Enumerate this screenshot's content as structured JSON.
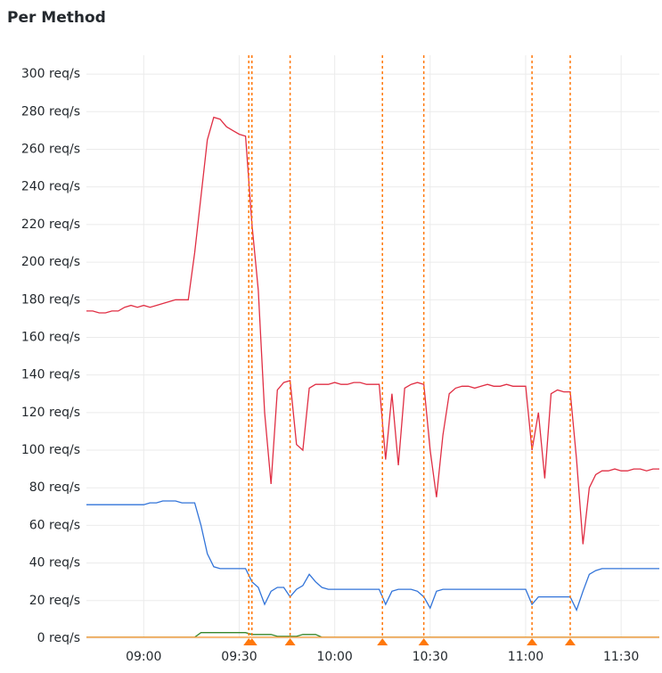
{
  "chart_data": {
    "type": "line",
    "title": "Per Method",
    "x": [
      "08:42",
      "08:44",
      "08:46",
      "08:48",
      "08:50",
      "08:52",
      "08:54",
      "08:56",
      "08:58",
      "09:00",
      "09:02",
      "09:04",
      "09:06",
      "09:08",
      "09:10",
      "09:12",
      "09:14",
      "09:16",
      "09:18",
      "09:20",
      "09:22",
      "09:24",
      "09:26",
      "09:28",
      "09:30",
      "09:32",
      "09:34",
      "09:36",
      "09:38",
      "09:40",
      "09:42",
      "09:44",
      "09:46",
      "09:48",
      "09:50",
      "09:52",
      "09:54",
      "09:56",
      "09:58",
      "10:00",
      "10:02",
      "10:04",
      "10:06",
      "10:08",
      "10:10",
      "10:12",
      "10:14",
      "10:16",
      "10:18",
      "10:20",
      "10:22",
      "10:24",
      "10:26",
      "10:28",
      "10:30",
      "10:32",
      "10:34",
      "10:36",
      "10:38",
      "10:40",
      "10:42",
      "10:44",
      "10:46",
      "10:48",
      "10:50",
      "10:52",
      "10:54",
      "10:56",
      "10:58",
      "11:00",
      "11:02",
      "11:04",
      "11:06",
      "11:08",
      "11:10",
      "11:12",
      "11:14",
      "11:16",
      "11:18",
      "11:20",
      "11:22",
      "11:24",
      "11:26",
      "11:28",
      "11:30",
      "11:32",
      "11:34",
      "11:36",
      "11:38",
      "11:40",
      "11:42"
    ],
    "series": [
      {
        "color": "#e02f44",
        "values": [
          174,
          174,
          173,
          173,
          174,
          174,
          176,
          177,
          176,
          177,
          176,
          177,
          178,
          179,
          180,
          180,
          180,
          205,
          235,
          265,
          277,
          276,
          272,
          270,
          268,
          267,
          220,
          185,
          120,
          82,
          132,
          136,
          137,
          103,
          100,
          133,
          135,
          135,
          135,
          136,
          135,
          135,
          136,
          136,
          135,
          135,
          135,
          95,
          130,
          92,
          133,
          135,
          136,
          135,
          100,
          75,
          108,
          130,
          133,
          134,
          134,
          133,
          134,
          135,
          134,
          134,
          135,
          134,
          134,
          134,
          100,
          120,
          85,
          130,
          132,
          131,
          131,
          95,
          50,
          80,
          87,
          89,
          89,
          90,
          89,
          89,
          90,
          90,
          89,
          90,
          90
        ]
      },
      {
        "color": "#3274d9",
        "values": [
          71,
          71,
          71,
          71,
          71,
          71,
          71,
          71,
          71,
          71,
          72,
          72,
          73,
          73,
          73,
          72,
          72,
          72,
          60,
          45,
          38,
          37,
          37,
          37,
          37,
          37,
          30,
          27,
          18,
          25,
          27,
          27,
          22,
          26,
          28,
          34,
          30,
          27,
          26,
          26,
          26,
          26,
          26,
          26,
          26,
          26,
          26,
          18,
          25,
          26,
          26,
          26,
          25,
          22,
          16,
          25,
          26,
          26,
          26,
          26,
          26,
          26,
          26,
          26,
          26,
          26,
          26,
          26,
          26,
          26,
          18,
          22,
          22,
          22,
          22,
          22,
          22,
          15,
          25,
          34,
          36,
          37,
          37,
          37,
          37,
          37,
          37,
          37,
          37,
          37,
          37
        ]
      },
      {
        "color": "#37872d",
        "values": [
          0.5,
          0.5,
          0.5,
          0.5,
          0.5,
          0.5,
          0.5,
          0.5,
          0.5,
          0.5,
          0.5,
          0.5,
          0.5,
          0.5,
          0.5,
          0.5,
          0.5,
          0.5,
          3,
          3,
          3,
          3,
          3,
          3,
          3,
          3,
          2,
          2,
          2,
          2,
          1,
          1,
          1,
          1,
          2,
          2,
          2,
          0.5,
          0.5,
          0.5,
          0.5,
          0.5,
          0.5,
          0.5,
          0.5,
          0.5,
          0.5,
          0.5,
          0.5,
          0.5,
          0.5,
          0.5,
          0.5,
          0.5,
          0.5,
          0.5,
          0.5,
          0.5,
          0.5,
          0.5,
          0.5,
          0.5,
          0.5,
          0.5,
          0.5,
          0.5,
          0.5,
          0.5,
          0.5,
          0.5,
          0.5,
          0.5,
          0.5,
          0.5,
          0.5,
          0.5,
          0.5,
          0.5,
          0.5,
          0.5,
          0.5,
          0.5,
          0.5,
          0.5,
          0.5,
          0.5,
          0.5,
          0.5,
          0.5,
          0.5,
          0.5
        ]
      },
      {
        "color": "#ff9830",
        "values": [
          0.5,
          0.5,
          0.5,
          0.5,
          0.5,
          0.5,
          0.5,
          0.5,
          0.5,
          0.5,
          0.5,
          0.5,
          0.5,
          0.5,
          0.5,
          0.5,
          0.5,
          0.5,
          0.5,
          0.5,
          0.5,
          0.5,
          0.5,
          0.5,
          0.5,
          0.5,
          0.5,
          0.5,
          0.5,
          0.5,
          0.5,
          0.5,
          0.5,
          0.5,
          0.5,
          0.5,
          0.5,
          0.5,
          0.5,
          0.5,
          0.5,
          0.5,
          0.5,
          0.5,
          0.5,
          0.5,
          0.5,
          0.5,
          0.5,
          0.5,
          0.5,
          0.5,
          0.5,
          0.5,
          0.5,
          0.5,
          0.5,
          0.5,
          0.5,
          0.5,
          0.5,
          0.5,
          0.5,
          0.5,
          0.5,
          0.5,
          0.5,
          0.5,
          0.5,
          0.5,
          0.5,
          0.5,
          0.5,
          0.5,
          0.5,
          0.5,
          0.5,
          0.5,
          0.5,
          0.5,
          0.5,
          0.5,
          0.5,
          0.5,
          0.5,
          0.5,
          0.5,
          0.5,
          0.5,
          0.5,
          0.5
        ]
      }
    ],
    "annotations": {
      "color": "#ff780a",
      "x": [
        "09:33",
        "09:34",
        "09:46",
        "10:15",
        "10:28",
        "11:02",
        "11:14"
      ]
    },
    "xlim": [
      "08:42",
      "11:42"
    ],
    "xticks": [
      "09:00",
      "09:30",
      "10:00",
      "10:30",
      "11:00",
      "11:30"
    ],
    "ylim": [
      0,
      310
    ],
    "yticks": [
      {
        "value": 0,
        "label": "0 req/s"
      },
      {
        "value": 20,
        "label": "20 req/s"
      },
      {
        "value": 40,
        "label": "40 req/s"
      },
      {
        "value": 60,
        "label": "60 req/s"
      },
      {
        "value": 80,
        "label": "80 req/s"
      },
      {
        "value": 100,
        "label": "100 req/s"
      },
      {
        "value": 120,
        "label": "120 req/s"
      },
      {
        "value": 140,
        "label": "140 req/s"
      },
      {
        "value": 160,
        "label": "160 req/s"
      },
      {
        "value": 180,
        "label": "180 req/s"
      },
      {
        "value": 200,
        "label": "200 req/s"
      },
      {
        "value": 220,
        "label": "220 req/s"
      },
      {
        "value": 240,
        "label": "240 req/s"
      },
      {
        "value": 260,
        "label": "260 req/s"
      },
      {
        "value": 280,
        "label": "280 req/s"
      },
      {
        "value": 300,
        "label": "300 req/s"
      }
    ],
    "grid": true
  }
}
